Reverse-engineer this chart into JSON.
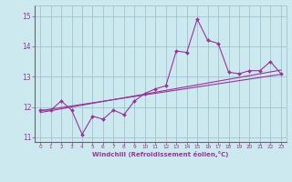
{
  "xlabel": "Windchill (Refroidissement éolien,°C)",
  "x": [
    0,
    1,
    2,
    3,
    4,
    5,
    6,
    7,
    8,
    9,
    10,
    11,
    12,
    13,
    14,
    15,
    16,
    17,
    18,
    19,
    20,
    21,
    22,
    23
  ],
  "line1": [
    11.9,
    11.9,
    12.2,
    11.9,
    11.1,
    11.7,
    11.6,
    11.9,
    11.75,
    12.2,
    12.45,
    12.6,
    12.7,
    13.85,
    13.8,
    14.9,
    14.2,
    14.1,
    13.15,
    13.1,
    13.2,
    13.2,
    13.5,
    13.1
  ],
  "line2_x": [
    0,
    23
  ],
  "line2_y": [
    11.88,
    13.08
  ],
  "line3_x": [
    0,
    23
  ],
  "line3_y": [
    11.82,
    13.22
  ],
  "ylim": [
    10.85,
    15.35
  ],
  "xlim": [
    -0.5,
    23.5
  ],
  "line_color": "#993399",
  "bg_color": "#cde9f0",
  "grid_color": "#99bbcc",
  "tick_color": "#993399",
  "label_color": "#993399",
  "yticks": [
    11,
    12,
    13,
    14,
    15
  ],
  "xticks": [
    0,
    1,
    2,
    3,
    4,
    5,
    6,
    7,
    8,
    9,
    10,
    11,
    12,
    13,
    14,
    15,
    16,
    17,
    18,
    19,
    20,
    21,
    22,
    23
  ]
}
